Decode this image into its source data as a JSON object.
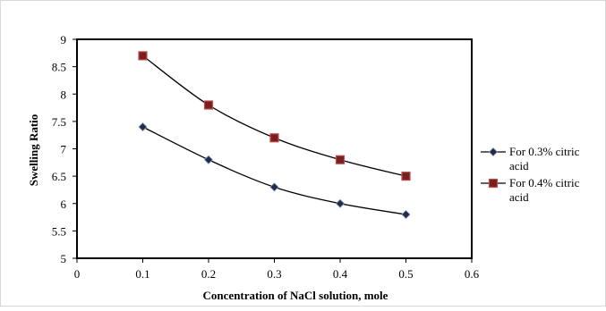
{
  "chart_data": {
    "type": "scatter",
    "title": "",
    "xlabel": "Concentration of NaCl solution, mole",
    "ylabel": "Swelling Ratio",
    "xlim": [
      0,
      0.6
    ],
    "ylim": [
      5,
      9
    ],
    "xticks": [
      "0",
      "0.1",
      "0.2",
      "0.3",
      "0.4",
      "0.5",
      "0.6"
    ],
    "yticks": [
      "5",
      "5.5",
      "6",
      "6.5",
      "7",
      "7.5",
      "8",
      "8.5",
      "9"
    ],
    "grid": false,
    "legend_position": "right",
    "series": [
      {
        "name": "For 0.3% citric acid",
        "name_lines": [
          "For 0.3% citric",
          "acid"
        ],
        "marker": "diamond",
        "color": "#000000",
        "marker_fill": "#1f2d4a",
        "x": [
          0.1,
          0.2,
          0.3,
          0.4,
          0.5
        ],
        "y": [
          7.4,
          6.8,
          6.3,
          6.0,
          5.8
        ]
      },
      {
        "name": "For 0.4% citric acid",
        "name_lines": [
          "For 0.4% citric",
          "acid"
        ],
        "marker": "square",
        "color": "#000000",
        "marker_fill": "#7a1e1e",
        "x": [
          0.1,
          0.2,
          0.3,
          0.4,
          0.5
        ],
        "y": [
          8.7,
          7.8,
          7.2,
          6.8,
          6.5
        ]
      }
    ]
  }
}
